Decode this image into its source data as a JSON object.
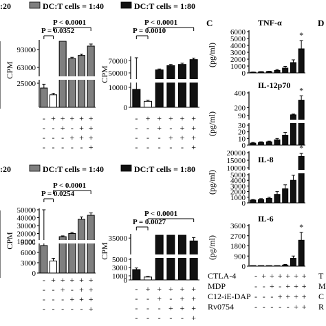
{
  "row_top": {
    "legend": [
      {
        "swatch_name": "legend-swatch-140",
        "text": "DC:T cells = 1:40",
        "color": "#7f7f7f"
      },
      {
        "swatch_name": "legend-swatch-180",
        "text": "DC:T cells = 1:80",
        "color": "#111111"
      }
    ],
    "cut_prev": ":20"
  },
  "row_bottom": {
    "legend": [
      {
        "swatch_name": "legend-swatch-140",
        "text": "DC:T cells = 1:40",
        "color": "#7f7f7f"
      },
      {
        "swatch_name": "legend-swatch-180",
        "text": "DC:T cells = 1:80",
        "color": "#111111"
      }
    ],
    "cut_prev": ":20"
  },
  "panel_c_letter": "C",
  "panel_d_letter": "D",
  "condition_labels": [
    "CTLA-4",
    "MDP",
    "C12-iE-DAP",
    "Rv0754"
  ],
  "condition_signs": [
    [
      "-",
      "+",
      "+",
      "+",
      "+",
      "+"
    ],
    [
      "-",
      "-",
      "+",
      "-",
      "+",
      "+"
    ],
    [
      "-",
      "-",
      "-",
      "+",
      "+",
      "+"
    ],
    [
      "-",
      "-",
      "-",
      "-",
      "-",
      "+"
    ]
  ],
  "d_cut_labels": [
    "T",
    "M",
    "C",
    "R"
  ],
  "chart_data": [
    {
      "id": "A-1:40",
      "type": "bar",
      "ylabel": "CPM",
      "series": [
        {
          "name": "DC:T cells = 1:40",
          "color": "#7f7f7f"
        }
      ],
      "categories": [
        "1",
        "2",
        "3",
        "4",
        "5",
        "6"
      ],
      "values": [
        20000,
        13000,
        50000,
        78000,
        83000,
        98000
      ],
      "errors": [
        4000,
        1500,
        1500,
        2000,
        2000,
        3000
      ],
      "fills": [
        "#7f7f7f",
        "#ffffff",
        "#7f7f7f",
        "#7f7f7f",
        "#7f7f7f",
        "#7f7f7f"
      ],
      "yticks": [
        25000,
        63000,
        93000
      ],
      "ytick_labels": [
        "25000",
        "63000",
        "93000"
      ],
      "annotations": [
        {
          "text": "P = 0.0352",
          "from": 1,
          "to": 2
        },
        {
          "text": "P < 0.0001",
          "from": 2,
          "to": 6
        }
      ],
      "stars": []
    },
    {
      "id": "B-1:80",
      "type": "bar",
      "ylabel": "CPM",
      "series": [
        {
          "name": "DC:T cells = 1:80",
          "color": "#111111"
        }
      ],
      "categories": [
        "1",
        "2",
        "3",
        "4",
        "5",
        "6"
      ],
      "values": [
        9000,
        3000,
        55000,
        62000,
        64000,
        72000
      ],
      "errors": [
        1200,
        600,
        1500,
        2000,
        2000,
        2500
      ],
      "fills": [
        "#111111",
        "#ffffff",
        "#111111",
        "#111111",
        "#111111",
        "#111111"
      ],
      "yticks": [
        0,
        10000,
        50000,
        70000
      ],
      "ytick_labels": [
        "0",
        "10000",
        "50000",
        "70000"
      ],
      "annotations": [
        {
          "text": "P = 0.0010",
          "from": 1,
          "to": 2
        },
        {
          "text": "P < 0.0001",
          "from": 2,
          "to": 6
        }
      ],
      "stars": []
    },
    {
      "id": "C-1:40",
      "type": "bar",
      "ylabel": "CPM",
      "series": [
        {
          "name": "DC:T cells = 1:40",
          "color": "#7f7f7f"
        }
      ],
      "categories": [
        "1",
        "2",
        "3",
        "4",
        "5",
        "6"
      ],
      "values": [
        8000,
        3500,
        16000,
        20000,
        38000,
        43000
      ],
      "errors": [
        1500,
        800,
        1000,
        1500,
        3000,
        3000
      ],
      "fills": [
        "#7f7f7f",
        "#ffffff",
        "#7f7f7f",
        "#7f7f7f",
        "#7f7f7f",
        "#7f7f7f"
      ],
      "yticks": [
        0,
        3000,
        6000,
        9000,
        10000,
        20000,
        30000,
        40000,
        50000
      ],
      "ytick_labels": [
        "0",
        "3000",
        "6000",
        "9000",
        "10000",
        "20000",
        "30000",
        "40000",
        "50000"
      ],
      "annotations": [
        {
          "text": "P = 0.0254",
          "from": 1,
          "to": 2
        },
        {
          "text": "P < 0.0001",
          "from": 2,
          "to": 6
        }
      ],
      "stars": []
    },
    {
      "id": "D-1:80",
      "type": "bar",
      "ylabel": "CPM",
      "series": [
        {
          "name": "DC:T cells = 1:80",
          "color": "#111111"
        }
      ],
      "categories": [
        "1",
        "2",
        "3",
        "4",
        "5",
        "6"
      ],
      "values": [
        2500,
        700,
        7000,
        8000,
        20000,
        34000
      ],
      "errors": [
        400,
        150,
        400,
        500,
        1000,
        1200
      ],
      "fills": [
        "#111111",
        "#ffffff",
        "#111111",
        "#111111",
        "#111111",
        "#111111"
      ],
      "yticks": [
        0,
        1000,
        3000,
        5000,
        35000
      ],
      "ytick_labels": [
        "0",
        "1000",
        "3000",
        "5000",
        "35000"
      ],
      "annotations": [
        {
          "text": "P = 0.0027",
          "from": 1,
          "to": 2
        },
        {
          "text": "P < 0.0001",
          "from": 2,
          "to": 6
        }
      ],
      "stars": []
    },
    {
      "id": "TNF",
      "type": "bar",
      "title": "TNF-α",
      "ylabel": "(pg/ml)",
      "categories": [
        "1",
        "2",
        "3",
        "4",
        "5",
        "6",
        "7"
      ],
      "values": [
        100,
        150,
        200,
        350,
        700,
        1500,
        3500
      ],
      "errors": [
        30,
        40,
        50,
        150,
        250,
        400,
        1200
      ],
      "fills": [
        "#111111",
        "#111111",
        "#111111",
        "#111111",
        "#111111",
        "#111111",
        "#111111"
      ],
      "yticks": [
        0,
        1000,
        2000,
        3000,
        4000,
        5000,
        6000
      ],
      "ytick_labels": [
        "0",
        "1000",
        "2000",
        "3000",
        "4000",
        "5000",
        "6000"
      ],
      "stars": [
        6
      ]
    },
    {
      "id": "IL12",
      "type": "bar",
      "title": "IL-12p70",
      "ylabel": "(pg/ml)",
      "categories": [
        "1",
        "2",
        "3",
        "4",
        "5",
        "6",
        "7"
      ],
      "values": [
        3,
        4,
        5,
        8,
        15,
        100,
        300
      ],
      "errors": [
        1,
        1,
        1,
        2,
        4,
        10,
        60
      ],
      "fills": [
        "#111111",
        "#111111",
        "#111111",
        "#111111",
        "#111111",
        "#111111",
        "#111111"
      ],
      "yticks": [
        0,
        10,
        20,
        30,
        90,
        200,
        400
      ],
      "ytick_labels": [
        "0",
        "10",
        "20",
        "30",
        "90",
        "200",
        "400"
      ],
      "stars": [
        6
      ]
    },
    {
      "id": "IL8",
      "type": "bar",
      "title": "IL-8",
      "ylabel": "(pg/ml)",
      "categories": [
        "1",
        "2",
        "3",
        "4",
        "5",
        "6",
        "7"
      ],
      "values": [
        500,
        600,
        800,
        1500,
        2500,
        4000,
        17500
      ],
      "errors": [
        100,
        150,
        200,
        500,
        700,
        900,
        2000
      ],
      "fills": [
        "#111111",
        "#111111",
        "#111111",
        "#111111",
        "#111111",
        "#111111",
        "#111111"
      ],
      "yticks": [
        0,
        1000,
        2000,
        3000,
        4000,
        5000,
        10000,
        15000,
        20000
      ],
      "ytick_labels": [
        "0",
        "1000",
        "2000",
        "3000",
        "4000",
        "5000",
        "10000",
        "15000",
        "20000"
      ],
      "stars": [
        6
      ]
    },
    {
      "id": "IL6",
      "type": "bar",
      "title": "IL-6",
      "ylabel": "(pg/ml)",
      "categories": [
        "1",
        "2",
        "3",
        "4",
        "5",
        "6",
        "7"
      ],
      "values": [
        0,
        0,
        0,
        20,
        100,
        700,
        2300
      ],
      "errors": [
        0,
        0,
        0,
        10,
        50,
        200,
        700
      ],
      "fills": [
        "#111111",
        "#111111",
        "#111111",
        "#111111",
        "#111111",
        "#111111",
        "#111111"
      ],
      "yticks": [
        0,
        900,
        1800,
        2700,
        3600
      ],
      "ytick_labels": [
        "0",
        "900",
        "1800",
        "2700",
        "3600"
      ],
      "stars": [
        6
      ]
    }
  ]
}
